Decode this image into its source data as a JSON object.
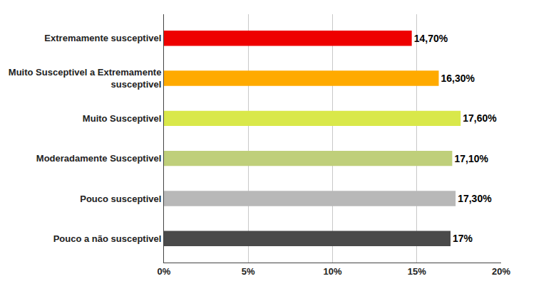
{
  "chart_data": {
    "type": "bar",
    "orientation": "horizontal",
    "categories": [
      "Pouco a não susceptivel",
      "Pouco susceptivel",
      "Moderadamente Susceptivel",
      "Muito Susceptivel",
      "Muito Susceptivel a Extremamente\nsusceptivel",
      "Extremamente susceptivel"
    ],
    "values": [
      17.0,
      17.3,
      17.1,
      17.6,
      16.3,
      14.7
    ],
    "value_labels": [
      "17%",
      "17,30%",
      "17,10%",
      "17,60%",
      "16,30%",
      "14,70%"
    ],
    "data_labels": true,
    "colors": [
      "#4a4a4a",
      "#b8b8b8",
      "#bfcf7a",
      "#d9e84a",
      "#ffaa00",
      "#ee0000"
    ],
    "xlim": [
      0,
      20
    ],
    "xticks": [
      {
        "value": 0,
        "label": "0%"
      },
      {
        "value": 5,
        "label": "5%"
      },
      {
        "value": 10,
        "label": "10%"
      },
      {
        "value": 15,
        "label": "15%"
      },
      {
        "value": 20,
        "label": "20%"
      }
    ],
    "grid": true
  }
}
